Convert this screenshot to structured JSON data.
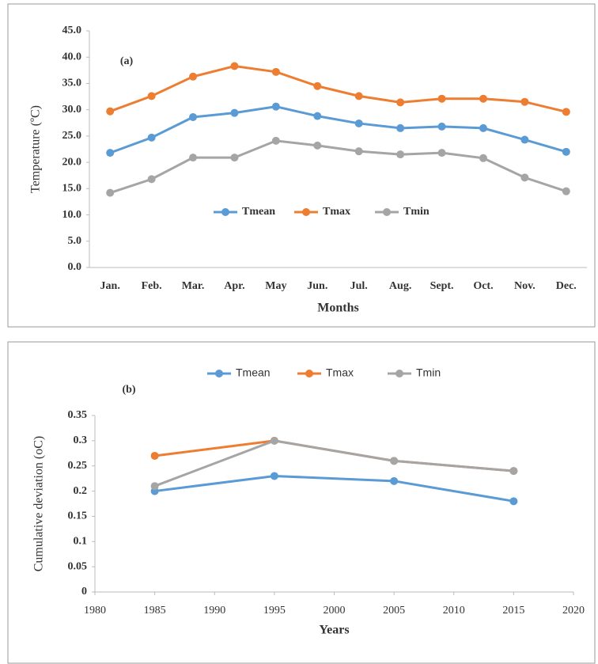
{
  "chart_data": [
    {
      "type": "line",
      "annotation": "(a)",
      "y_label": "Temperature (ºC)",
      "x_label": "Months",
      "categories": [
        "Jan.",
        "Feb.",
        "Mar.",
        "Apr.",
        "May",
        "Jun.",
        "Jul.",
        "Aug.",
        "Sept.",
        "Oct.",
        "Nov.",
        "Dec."
      ],
      "series": [
        {
          "name": "Tmean",
          "color": "#5b9bd5",
          "values": [
            21.8,
            24.7,
            28.6,
            29.4,
            30.6,
            28.8,
            27.4,
            26.5,
            26.8,
            26.5,
            24.3,
            22.0
          ]
        },
        {
          "name": "Tmax",
          "color": "#ed7d31",
          "values": [
            29.7,
            32.6,
            36.3,
            38.3,
            37.2,
            34.5,
            32.6,
            31.4,
            32.1,
            32.1,
            31.5,
            29.6
          ]
        },
        {
          "name": "Tmin",
          "color": "#a5a5a5",
          "values": [
            14.2,
            16.8,
            20.9,
            20.9,
            24.1,
            23.2,
            22.1,
            21.5,
            21.8,
            20.8,
            17.1,
            14.5
          ]
        }
      ],
      "ylim": [
        0,
        45
      ],
      "yticks": [
        {
          "value": 0,
          "label": "0.0"
        },
        {
          "value": 5,
          "label": "5.0"
        },
        {
          "value": 10,
          "label": "10.0"
        },
        {
          "value": 15,
          "label": "15.0"
        },
        {
          "value": 20,
          "label": "20.0"
        },
        {
          "value": 25,
          "label": "25.0"
        },
        {
          "value": 30,
          "label": "30.0"
        },
        {
          "value": 35,
          "label": "35.0"
        },
        {
          "value": 40,
          "label": "40.0"
        },
        {
          "value": 45,
          "label": "45.0"
        }
      ],
      "grid": false,
      "legend": "inside-center"
    },
    {
      "type": "line",
      "annotation": "(b)",
      "y_label": "Cumulative deviation (oC)",
      "x_label": "Years",
      "x": [
        1985,
        1995,
        2005,
        2015
      ],
      "series": [
        {
          "name": "Tmean",
          "color": "#5b9bd5",
          "values": [
            0.2,
            0.23,
            0.22,
            0.18
          ]
        },
        {
          "name": "Tmax",
          "color": "#ed7d31",
          "values": [
            0.27,
            0.3,
            0.26,
            0.24
          ]
        },
        {
          "name": "Tmin",
          "color": "#a5a5a5",
          "values": [
            0.21,
            0.3,
            0.26,
            0.24
          ]
        }
      ],
      "xlim": [
        1980,
        2020
      ],
      "xticks": [
        1980,
        1985,
        1990,
        1995,
        2000,
        2005,
        2010,
        2015,
        2020
      ],
      "ylim": [
        0,
        0.35
      ],
      "yticks": [
        0,
        0.05,
        0.1,
        0.15,
        0.2,
        0.25,
        0.3,
        0.35
      ],
      "grid": false,
      "legend": "top"
    }
  ]
}
